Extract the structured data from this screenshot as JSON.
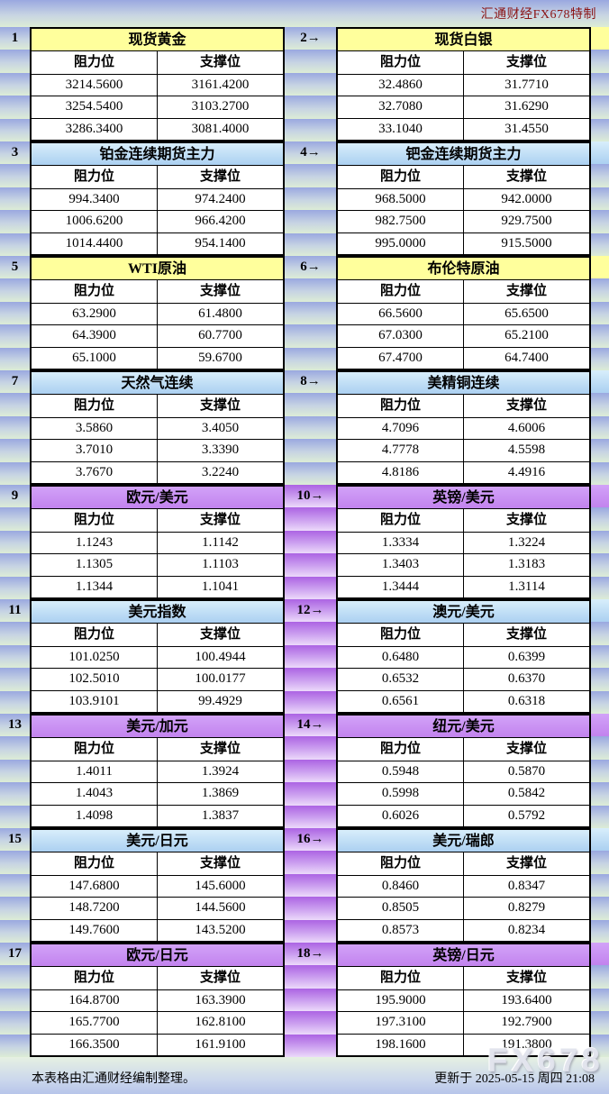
{
  "header": {
    "brand": "汇通财经FX678特制"
  },
  "columns": {
    "resistance": "阻力位",
    "support": "支撑位"
  },
  "colors": {
    "yellow_header": "#ffff9c",
    "blue_header": "#bcd9f3",
    "purple_header": "#c98ef2",
    "brand_text": "#8b1414",
    "band_blue": "#9aa8e0",
    "band_green": "#dcecd6",
    "band_purple": "#ac63e3"
  },
  "chart_data": {
    "type": "table",
    "column_headers": [
      "阻力位",
      "支撑位"
    ],
    "tables": [
      {
        "num": "1",
        "title": "现货黄金",
        "theme": "yellow",
        "rows": [
          [
            "3214.5600",
            "3161.4200"
          ],
          [
            "3254.5400",
            "3103.2700"
          ],
          [
            "3286.3400",
            "3081.4000"
          ]
        ]
      },
      {
        "num": "2→",
        "title": "现货白银",
        "theme": "yellow",
        "rows": [
          [
            "32.4860",
            "31.7710"
          ],
          [
            "32.7080",
            "31.6290"
          ],
          [
            "33.1040",
            "31.4550"
          ]
        ]
      },
      {
        "num": "3",
        "title": "铂金连续期货主力",
        "theme": "blue",
        "rows": [
          [
            "994.3400",
            "974.2400"
          ],
          [
            "1006.6200",
            "966.4200"
          ],
          [
            "1014.4400",
            "954.1400"
          ]
        ]
      },
      {
        "num": "4→",
        "title": "钯金连续期货主力",
        "theme": "blue",
        "rows": [
          [
            "968.5000",
            "942.0000"
          ],
          [
            "982.7500",
            "929.7500"
          ],
          [
            "995.0000",
            "915.5000"
          ]
        ]
      },
      {
        "num": "5",
        "title": "WTI原油",
        "theme": "yellow",
        "rows": [
          [
            "63.2900",
            "61.4800"
          ],
          [
            "64.3900",
            "60.7700"
          ],
          [
            "65.1000",
            "59.6700"
          ]
        ]
      },
      {
        "num": "6→",
        "title": "布伦特原油",
        "theme": "yellow",
        "rows": [
          [
            "66.5600",
            "65.6500"
          ],
          [
            "67.0300",
            "65.2100"
          ],
          [
            "67.4700",
            "64.7400"
          ]
        ]
      },
      {
        "num": "7",
        "title": "天然气连续",
        "theme": "blue",
        "rows": [
          [
            "3.5860",
            "3.4050"
          ],
          [
            "3.7010",
            "3.3390"
          ],
          [
            "3.7670",
            "3.2240"
          ]
        ]
      },
      {
        "num": "8→",
        "title": "美精铜连续",
        "theme": "blue",
        "rows": [
          [
            "4.7096",
            "4.6006"
          ],
          [
            "4.7778",
            "4.5598"
          ],
          [
            "4.8186",
            "4.4916"
          ]
        ]
      },
      {
        "num": "9",
        "title": "欧元/美元",
        "theme": "purple",
        "rows": [
          [
            "1.1243",
            "1.1142"
          ],
          [
            "1.1305",
            "1.1103"
          ],
          [
            "1.1344",
            "1.1041"
          ]
        ]
      },
      {
        "num": "10→",
        "title": "英镑/美元",
        "theme": "purple",
        "rows": [
          [
            "1.3334",
            "1.3224"
          ],
          [
            "1.3403",
            "1.3183"
          ],
          [
            "1.3444",
            "1.3114"
          ]
        ]
      },
      {
        "num": "11",
        "title": "美元指数",
        "theme": "blue",
        "rows": [
          [
            "101.0250",
            "100.4944"
          ],
          [
            "102.5010",
            "100.0177"
          ],
          [
            "103.9101",
            "99.4929"
          ]
        ]
      },
      {
        "num": "12→",
        "title": "澳元/美元",
        "theme": "blue",
        "rows": [
          [
            "0.6480",
            "0.6399"
          ],
          [
            "0.6532",
            "0.6370"
          ],
          [
            "0.6561",
            "0.6318"
          ]
        ]
      },
      {
        "num": "13",
        "title": "美元/加元",
        "theme": "purple",
        "rows": [
          [
            "1.4011",
            "1.3924"
          ],
          [
            "1.4043",
            "1.3869"
          ],
          [
            "1.4098",
            "1.3837"
          ]
        ]
      },
      {
        "num": "14→",
        "title": "纽元/美元",
        "theme": "purple",
        "rows": [
          [
            "0.5948",
            "0.5870"
          ],
          [
            "0.5998",
            "0.5842"
          ],
          [
            "0.6026",
            "0.5792"
          ]
        ]
      },
      {
        "num": "15",
        "title": "美元/日元",
        "theme": "blue",
        "rows": [
          [
            "147.6800",
            "145.6000"
          ],
          [
            "148.7200",
            "144.5600"
          ],
          [
            "149.7600",
            "143.5200"
          ]
        ]
      },
      {
        "num": "16→",
        "title": "美元/瑞郎",
        "theme": "blue",
        "rows": [
          [
            "0.8460",
            "0.8347"
          ],
          [
            "0.8505",
            "0.8279"
          ],
          [
            "0.8573",
            "0.8234"
          ]
        ]
      },
      {
        "num": "17",
        "title": "欧元/日元",
        "theme": "purple",
        "rows": [
          [
            "164.8700",
            "163.3900"
          ],
          [
            "165.7700",
            "162.8100"
          ],
          [
            "166.3500",
            "161.9100"
          ]
        ]
      },
      {
        "num": "18→",
        "title": "英镑/日元",
        "theme": "purple",
        "rows": [
          [
            "195.9000",
            "193.6400"
          ],
          [
            "197.3100",
            "192.7900"
          ],
          [
            "198.1600",
            "191.3800"
          ]
        ]
      }
    ]
  },
  "footer": {
    "note": "本表格由汇通财经编制整理。",
    "updated": "更新于 2025-05-15 周四 21:08",
    "watermark": "FX678"
  }
}
